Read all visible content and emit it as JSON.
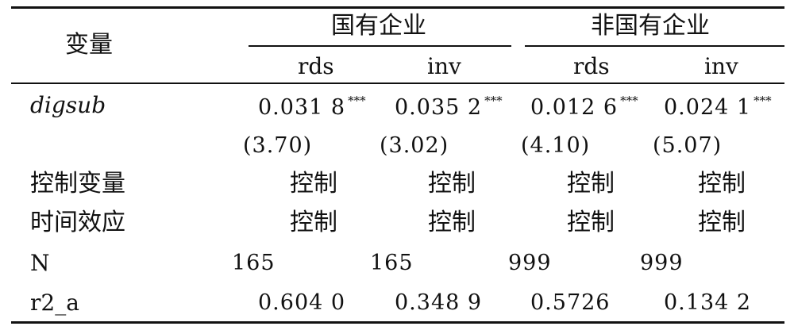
{
  "header": {
    "variable_label": "变量",
    "group_soe": "国有企业",
    "group_non_soe": "非国有企业",
    "columns": [
      "rds",
      "inv",
      "rds",
      "inv"
    ]
  },
  "rows": {
    "digsub": {
      "label": "digsub",
      "coefficients": [
        "0.031 8",
        "0.035 2",
        "0.012 6",
        "0.024 1"
      ],
      "stars": [
        "***",
        "***",
        "***",
        "***"
      ],
      "t_values": [
        "(3.70)",
        "(3.02)",
        "(4.10)",
        "(5.07)"
      ]
    },
    "controls": {
      "label": "控制变量",
      "values": [
        "控制",
        "控制",
        "控制",
        "控制"
      ]
    },
    "time_effect": {
      "label": "时间效应",
      "values": [
        "控制",
        "控制",
        "控制",
        "控制"
      ]
    },
    "n": {
      "label": "N",
      "values": [
        "165",
        "165",
        "999",
        "999"
      ]
    },
    "r2a": {
      "label": "r2_a",
      "values": [
        "0.604 0",
        "0.348 9",
        "0.5726",
        "0.134 2"
      ]
    }
  }
}
